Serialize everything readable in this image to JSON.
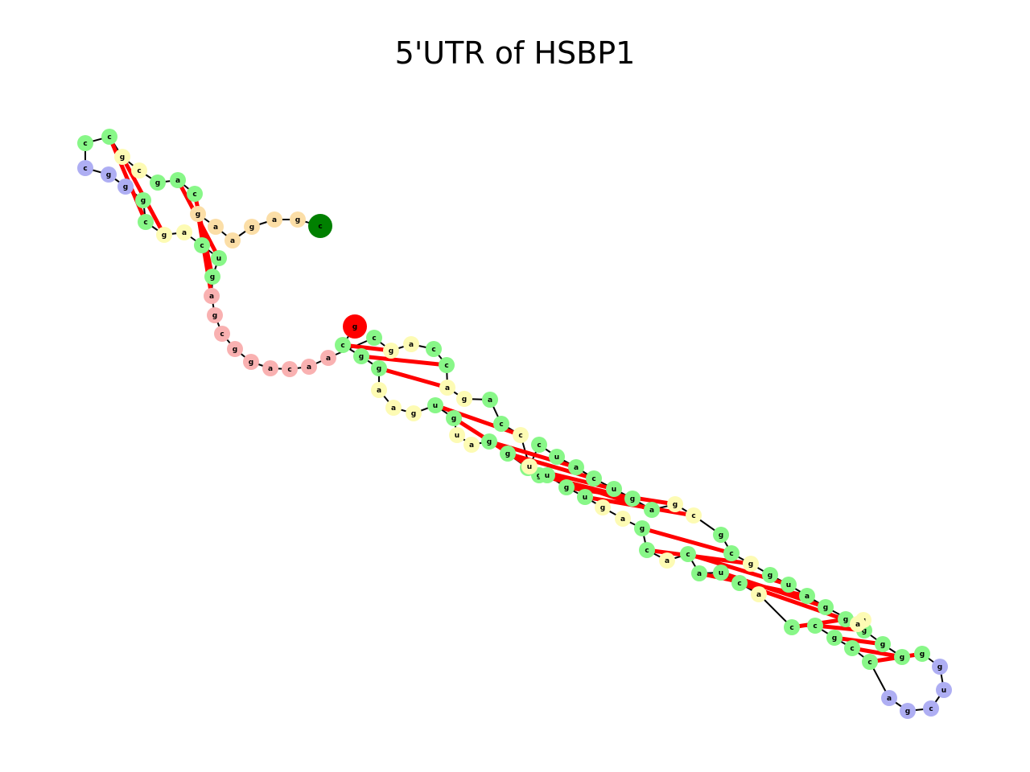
{
  "title": "5'UTR of HSBP1",
  "colors": {
    "stem": "#88f788",
    "interior_loop": "#fdfbb4",
    "hairpin_loop": "#aeaef3",
    "five_prime_unpaired": "#f9b1b1",
    "three_prime_unpaired": "#fbdea7",
    "start_node": "#ff0000",
    "end_node": "#008000",
    "backbone": "#000000",
    "pair_bond": "#ff0000"
  },
  "nucleotides": [
    {
      "b": "g",
      "t": "start"
    },
    {
      "b": "c",
      "t": "stem"
    },
    {
      "b": "g",
      "t": "stem"
    },
    {
      "b": "g",
      "t": "stem"
    },
    {
      "b": "a",
      "t": "interior"
    },
    {
      "b": "a",
      "t": "interior"
    },
    {
      "b": "g",
      "t": "interior"
    },
    {
      "b": "u",
      "t": "stem"
    },
    {
      "b": "g",
      "t": "stem"
    },
    {
      "b": "u",
      "t": "interior"
    },
    {
      "b": "a",
      "t": "interior"
    },
    {
      "b": "g",
      "t": "stem"
    },
    {
      "b": "g",
      "t": "stem"
    },
    {
      "b": "u",
      "t": "stem"
    },
    {
      "b": "g",
      "t": "stem"
    },
    {
      "b": "u",
      "t": "stem"
    },
    {
      "b": "g",
      "t": "stem"
    },
    {
      "b": "u",
      "t": "stem"
    },
    {
      "b": "g",
      "t": "interior"
    },
    {
      "b": "a",
      "t": "interior"
    },
    {
      "b": "g",
      "t": "stem"
    },
    {
      "b": "c",
      "t": "stem"
    },
    {
      "b": "a",
      "t": "interior"
    },
    {
      "b": "c",
      "t": "stem"
    },
    {
      "b": "a",
      "t": "stem"
    },
    {
      "b": "u",
      "t": "stem"
    },
    {
      "b": "c",
      "t": "stem"
    },
    {
      "b": "a",
      "t": "interior"
    },
    {
      "b": "c",
      "t": "stem"
    },
    {
      "b": "c",
      "t": "stem"
    },
    {
      "b": "g",
      "t": "stem"
    },
    {
      "b": "c",
      "t": "stem"
    },
    {
      "b": "c",
      "t": "stem"
    },
    {
      "b": "a",
      "t": "hairpin"
    },
    {
      "b": "g",
      "t": "hairpin"
    },
    {
      "b": "c",
      "t": "hairpin"
    },
    {
      "b": "u",
      "t": "hairpin"
    },
    {
      "b": "g",
      "t": "hairpin"
    },
    {
      "b": "g",
      "t": "stem"
    },
    {
      "b": "g",
      "t": "stem"
    },
    {
      "b": "g",
      "t": "stem"
    },
    {
      "b": "g",
      "t": "stem"
    },
    {
      "b": "g",
      "t": "stem"
    },
    {
      "b": "u",
      "t": "interior"
    },
    {
      "b": "a",
      "t": "interior"
    },
    {
      "b": "g",
      "t": "stem"
    },
    {
      "b": "a",
      "t": "stem"
    },
    {
      "b": "u",
      "t": "stem"
    },
    {
      "b": "g",
      "t": "stem"
    },
    {
      "b": "g",
      "t": "interior"
    },
    {
      "b": "c",
      "t": "stem"
    },
    {
      "b": "g",
      "t": "stem"
    },
    {
      "b": "c",
      "t": "interior"
    },
    {
      "b": "g",
      "t": "interior"
    },
    {
      "b": "a",
      "t": "stem"
    },
    {
      "b": "g",
      "t": "stem"
    },
    {
      "b": "u",
      "t": "stem"
    },
    {
      "b": "c",
      "t": "stem"
    },
    {
      "b": "a",
      "t": "stem"
    },
    {
      "b": "u",
      "t": "stem"
    },
    {
      "b": "c",
      "t": "stem"
    },
    {
      "b": "u",
      "t": "interior"
    },
    {
      "b": "c",
      "t": "interior"
    },
    {
      "b": "c",
      "t": "stem"
    },
    {
      "b": "a",
      "t": "stem"
    },
    {
      "b": "g",
      "t": "interior"
    },
    {
      "b": "a",
      "t": "interior"
    },
    {
      "b": "c",
      "t": "stem"
    },
    {
      "b": "c",
      "t": "stem"
    },
    {
      "b": "a",
      "t": "interior"
    },
    {
      "b": "g",
      "t": "interior"
    },
    {
      "b": "c",
      "t": "stem"
    },
    {
      "b": "a",
      "t": "five"
    },
    {
      "b": "a",
      "t": "five"
    },
    {
      "b": "c",
      "t": "five"
    },
    {
      "b": "a",
      "t": "five"
    },
    {
      "b": "g",
      "t": "five"
    },
    {
      "b": "g",
      "t": "five"
    },
    {
      "b": "c",
      "t": "five"
    },
    {
      "b": "g",
      "t": "five"
    },
    {
      "b": "a",
      "t": "five"
    },
    {
      "b": "g",
      "t": "stem"
    },
    {
      "b": "u",
      "t": "stem"
    },
    {
      "b": "c",
      "t": "stem"
    },
    {
      "b": "a",
      "t": "interior"
    },
    {
      "b": "g",
      "t": "interior"
    },
    {
      "b": "c",
      "t": "stem"
    },
    {
      "b": "g",
      "t": "stem"
    },
    {
      "b": "g",
      "t": "hairpin"
    },
    {
      "b": "g",
      "t": "hairpin"
    },
    {
      "b": "c",
      "t": "hairpin"
    },
    {
      "b": "c",
      "t": "stem"
    },
    {
      "b": "c",
      "t": "stem"
    },
    {
      "b": "g",
      "t": "interior"
    },
    {
      "b": "c",
      "t": "interior"
    },
    {
      "b": "g",
      "t": "stem"
    },
    {
      "b": "a",
      "t": "stem"
    },
    {
      "b": "c",
      "t": "stem"
    },
    {
      "b": "g",
      "t": "three"
    },
    {
      "b": "a",
      "t": "three"
    },
    {
      "b": "a",
      "t": "three"
    },
    {
      "b": "g",
      "t": "three"
    },
    {
      "b": "a",
      "t": "three"
    },
    {
      "b": "g",
      "t": "three"
    },
    {
      "b": "c",
      "t": "end"
    }
  ],
  "pairs": [
    [
      1,
      70
    ],
    [
      2,
      67
    ],
    [
      3,
      66
    ],
    [
      7,
      62
    ],
    [
      8,
      61
    ],
    [
      11,
      58
    ],
    [
      12,
      57
    ],
    [
      13,
      56
    ],
    [
      14,
      55
    ],
    [
      15,
      54
    ],
    [
      16,
      53
    ],
    [
      17,
      52
    ],
    [
      20,
      50
    ],
    [
      21,
      49
    ],
    [
      23,
      47
    ],
    [
      24,
      46
    ],
    [
      25,
      45
    ],
    [
      26,
      44
    ],
    [
      28,
      42
    ],
    [
      29,
      41
    ],
    [
      30,
      40
    ],
    [
      31,
      39
    ],
    [
      32,
      38
    ],
    [
      80,
      98
    ],
    [
      81,
      97
    ],
    [
      82,
      96
    ],
    [
      85,
      93
    ],
    [
      86,
      92
    ]
  ]
}
